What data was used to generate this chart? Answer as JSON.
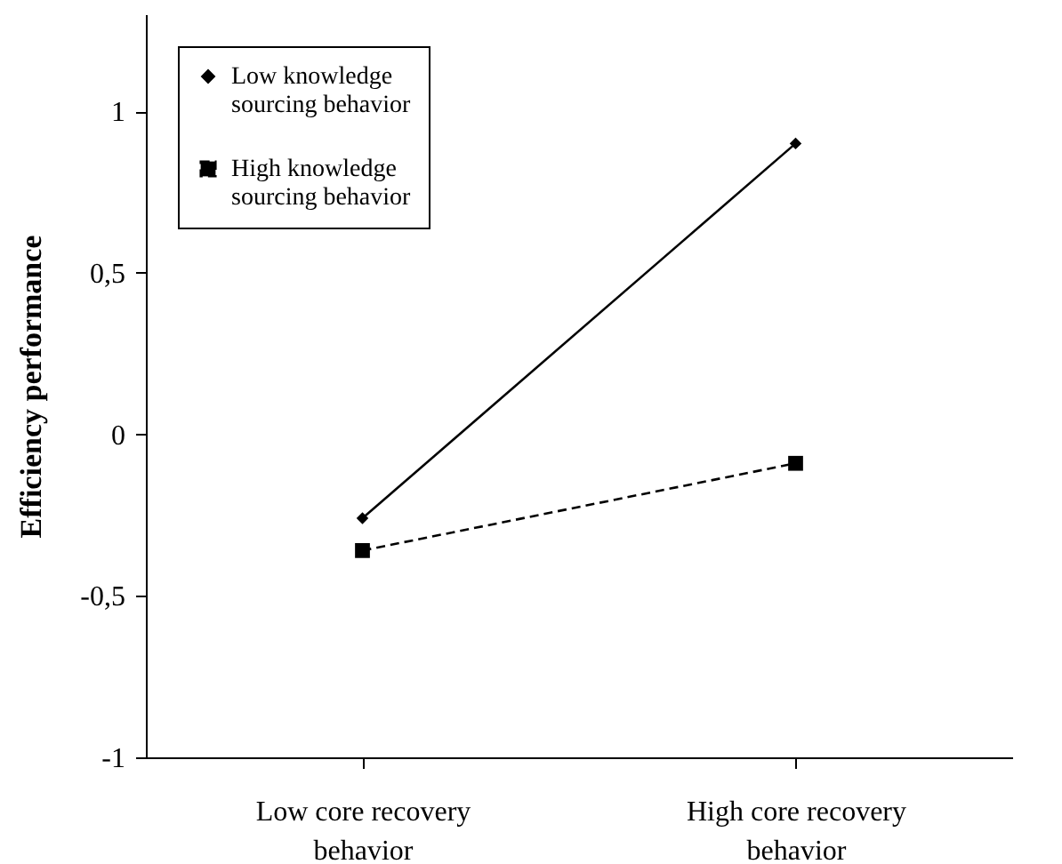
{
  "chart_data": {
    "type": "line",
    "ylabel": "Efficiency performance",
    "categories": [
      "Low core recovery behavior",
      "High core recovery behavior"
    ],
    "ylim": [
      -1,
      1.3
    ],
    "yticks": [
      -1,
      {
        "value": -0.5,
        "label": "-0,5"
      },
      0,
      {
        "value": 0.5,
        "label": "0,5"
      },
      1
    ],
    "grid": false,
    "legend": "top left",
    "series": [
      {
        "name": "Low knowledge sourcing behavior",
        "color": "#000000",
        "marker": "diamond",
        "line_style": "solid",
        "values": [
          -0.26,
          0.9
        ]
      },
      {
        "name": "High knowledge sourcing behavior",
        "color": "#000000",
        "marker": "square",
        "line_style": "dashed",
        "values": [
          -0.36,
          -0.09
        ]
      }
    ]
  }
}
